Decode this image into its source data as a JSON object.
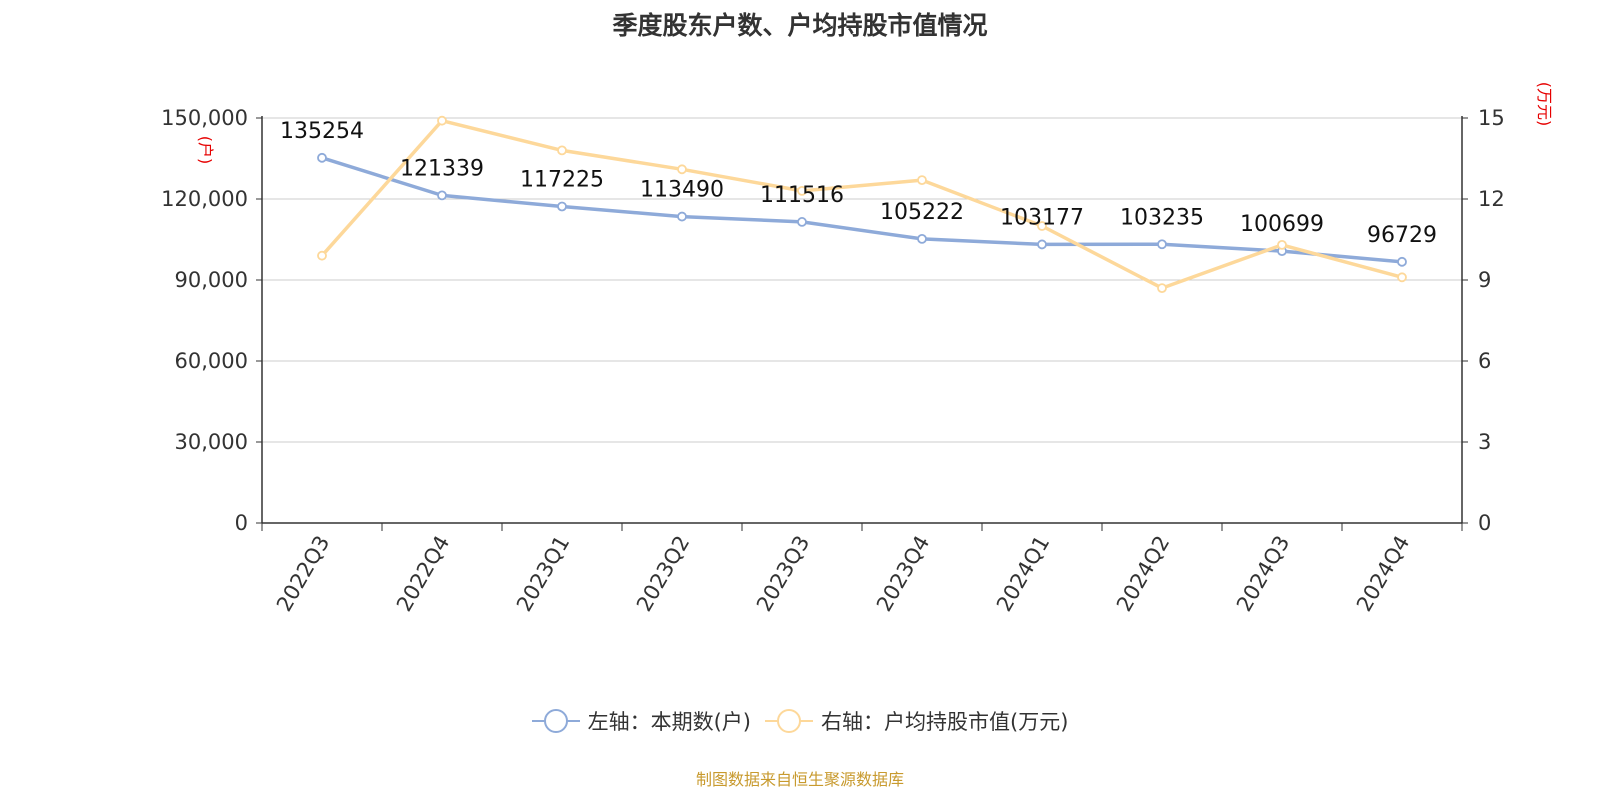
{
  "title": "季度股东户数、户均持股市值情况",
  "source": "制图数据来自恒生聚源数据库",
  "colors": {
    "series_left": "#8eaad9",
    "series_right": "#fdd89a",
    "unit": "#e60000",
    "source": "#c89a2e",
    "grid": "#cccccc",
    "axis": "#333333"
  },
  "chart_data": {
    "type": "line",
    "title": "季度股东户数、户均持股市值情况",
    "categories": [
      "2022Q3",
      "2022Q4",
      "2023Q1",
      "2023Q2",
      "2023Q3",
      "2023Q4",
      "2024Q1",
      "2024Q2",
      "2024Q3",
      "2024Q4"
    ],
    "left_axis": {
      "unit": "(户)",
      "ylim": [
        0,
        150000
      ],
      "ticks": [
        0,
        30000,
        60000,
        90000,
        120000,
        150000
      ],
      "tick_labels": [
        "0",
        "30,000",
        "60,000",
        "90,000",
        "120,000",
        "150,000"
      ]
    },
    "right_axis": {
      "unit": "(万元)",
      "ylim": [
        0,
        15
      ],
      "ticks": [
        0,
        3,
        6,
        9,
        12,
        15
      ],
      "tick_labels": [
        "0",
        "3",
        "6",
        "9",
        "12",
        "15"
      ]
    },
    "series": [
      {
        "name": "左轴：本期数(户)",
        "axis": "left",
        "values": [
          135254,
          121339,
          117225,
          113490,
          111516,
          105222,
          103177,
          103235,
          100699,
          96729
        ],
        "data_labels": [
          "135254",
          "121339",
          "117225",
          "113490",
          "111516",
          "105222",
          "103177",
          "103235",
          "100699",
          "96729"
        ]
      },
      {
        "name": "右轴：户均持股市值(万元)",
        "axis": "right",
        "values": [
          9.9,
          14.9,
          13.8,
          13.1,
          12.3,
          12.7,
          11.0,
          8.7,
          10.3,
          9.1
        ]
      }
    ],
    "grid": true,
    "legend_position": "bottom"
  }
}
